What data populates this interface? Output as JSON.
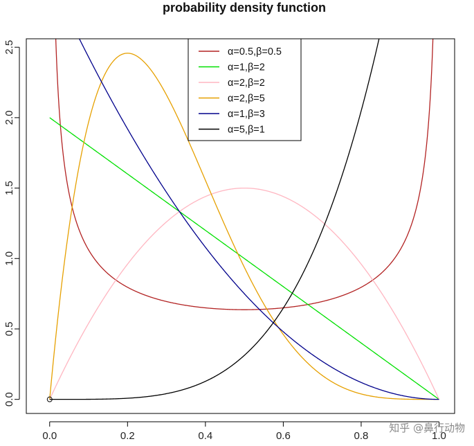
{
  "chart_data": {
    "type": "line",
    "title": "probability density function",
    "xlabel": "",
    "ylabel": "",
    "xlim": [
      -0.06,
      1.04
    ],
    "ylim": [
      -0.1,
      2.56
    ],
    "x_ticks": [
      {
        "value": 0.0,
        "label": "0.0"
      },
      {
        "value": 0.2,
        "label": "0.2"
      },
      {
        "value": 0.4,
        "label": "0.4"
      },
      {
        "value": 0.6,
        "label": "0.6"
      },
      {
        "value": 0.8,
        "label": "0.8"
      },
      {
        "value": 1.0,
        "label": "1.0"
      }
    ],
    "y_ticks": [
      {
        "value": 0.0,
        "label": "0.0"
      },
      {
        "value": 0.5,
        "label": "0.5"
      },
      {
        "value": 1.0,
        "label": "1.0"
      },
      {
        "value": 1.5,
        "label": "1.5"
      },
      {
        "value": 2.0,
        "label": "2.0"
      },
      {
        "value": 2.5,
        "label": "2.5"
      }
    ],
    "grid": false,
    "legend_position": "top-center",
    "start_marker": {
      "x": 0.0,
      "y": 0.0,
      "shape": "open-circle"
    },
    "series": [
      {
        "name": "α=0.5,β=0.5",
        "alpha": 0.5,
        "beta": 0.5,
        "color": "#b22222"
      },
      {
        "name": "α=1,β=2",
        "alpha": 1,
        "beta": 2,
        "color": "#00e000"
      },
      {
        "name": "α=2,β=2",
        "alpha": 2,
        "beta": 2,
        "color": "#ffb6c1"
      },
      {
        "name": "α=2,β=5",
        "alpha": 2,
        "beta": 5,
        "color": "#e6a000"
      },
      {
        "name": "α=1,β=3",
        "alpha": 1,
        "beta": 3,
        "color": "#00008b"
      },
      {
        "name": "α=5,β=1",
        "alpha": 5,
        "beta": 1,
        "color": "#000000"
      }
    ]
  },
  "watermark": "知乎 @鼻行动物"
}
